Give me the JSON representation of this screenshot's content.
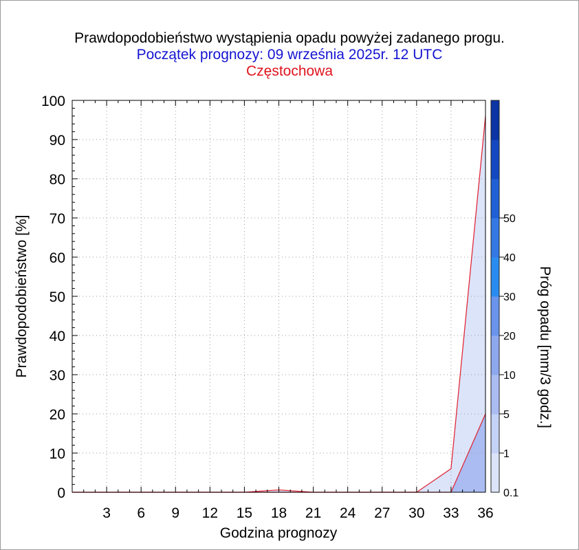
{
  "chart_data": {
    "type": "area",
    "title": "Prawdopodobieństwo wystąpienia opadu powyżej zadanego progu.",
    "subtitle": "Początek prognozy: 09 września 2025r. 12 UTC",
    "location": "Częstochowa",
    "xlabel": "Godzina prognozy",
    "ylabel": "Prawdopodobieństwo [%]",
    "x_ticks": [
      "3",
      "6",
      "9",
      "12",
      "15",
      "18",
      "21",
      "24",
      "27",
      "30",
      "33",
      "36"
    ],
    "y_ticks": [
      "0",
      "10",
      "20",
      "30",
      "40",
      "50",
      "60",
      "70",
      "80",
      "90",
      "100"
    ],
    "xlim": [
      0,
      36
    ],
    "ylim": [
      0,
      100
    ],
    "grid": true,
    "series": [
      {
        "name": "0.1",
        "color": "#dce4fa",
        "line_color": "#e02838",
        "x": [
          0,
          3,
          6,
          9,
          12,
          15,
          18,
          21,
          24,
          27,
          30,
          33,
          36
        ],
        "values": [
          0,
          0,
          0,
          0,
          0,
          0,
          0.6,
          0,
          0,
          0,
          0,
          6,
          96
        ]
      },
      {
        "name": "1",
        "color": "#aabcf2",
        "line_color": "#e02838",
        "x": [
          0,
          3,
          6,
          9,
          12,
          15,
          18,
          21,
          24,
          27,
          30,
          33,
          36
        ],
        "values": [
          0,
          0,
          0,
          0,
          0,
          0,
          0,
          0,
          0,
          0,
          0,
          0,
          20
        ]
      }
    ],
    "colorbar": {
      "label": "Próg opadu [mm/3 godz.]",
      "tick_labels": [
        "0.1",
        "1",
        "5",
        "10",
        "20",
        "30",
        "40",
        "50"
      ],
      "colors": [
        "#dce4fa",
        "#c4d2f6",
        "#aabcf2",
        "#8ea8ee",
        "#6a94ec",
        "#2a8cf0",
        "#3478e4",
        "#2060d4",
        "#1448c0",
        "#0c34a4"
      ]
    }
  }
}
